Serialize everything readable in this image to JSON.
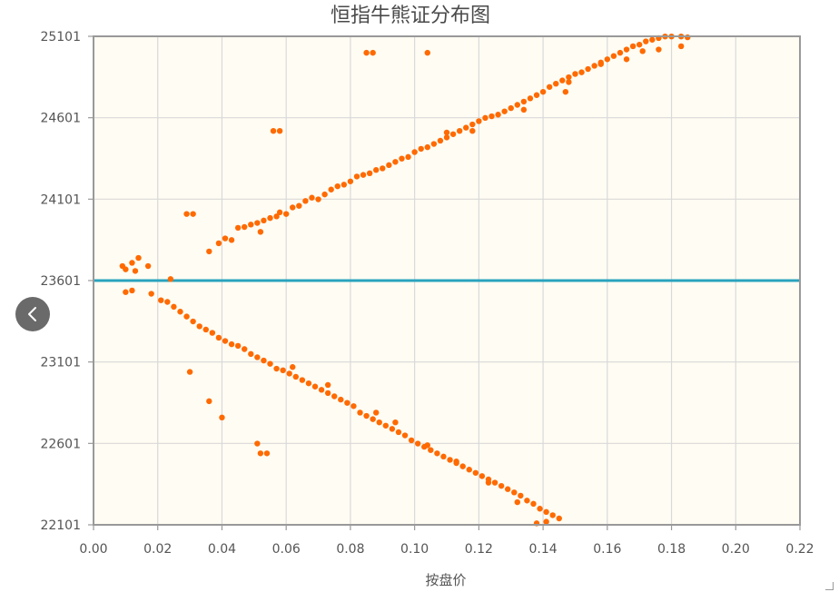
{
  "chart_data": {
    "type": "scatter",
    "title": "恒指牛熊证分布图",
    "xlabel": "按盘价",
    "ylabel": "",
    "xlim": [
      0,
      0.22
    ],
    "ylim": [
      22101,
      25101
    ],
    "x_ticks": [
      0,
      0.02,
      0.04,
      0.06,
      0.08,
      0.1,
      0.12,
      0.14,
      0.16,
      0.18,
      0.2,
      0.22
    ],
    "x_tick_labels": [
      "0.00",
      "0.02",
      "0.04",
      "0.06",
      "0.08",
      "0.10",
      "0.12",
      "0.14",
      "0.16",
      "0.18",
      "0.20",
      "0.22"
    ],
    "y_ticks": [
      22101,
      22601,
      23101,
      23601,
      24101,
      24601,
      25101
    ],
    "y_tick_labels": [
      "22101",
      "22601",
      "23101",
      "23601",
      "24101",
      "24601",
      "25101"
    ],
    "grid": true,
    "reference_line": {
      "y": 23601,
      "color": "#2aa3bd"
    },
    "colors": {
      "points": "#ff6a00",
      "plot_background": "#fffcf3",
      "grid": "#d9d9d9",
      "frame": "#999999"
    },
    "series": [
      {
        "points": [
          [
            0.009,
            23690
          ],
          [
            0.01,
            23670
          ],
          [
            0.012,
            23710
          ],
          [
            0.013,
            23660
          ],
          [
            0.014,
            23740
          ],
          [
            0.017,
            23690
          ],
          [
            0.036,
            23780
          ],
          [
            0.039,
            23830
          ],
          [
            0.041,
            23860
          ],
          [
            0.043,
            23850
          ],
          [
            0.045,
            23925
          ],
          [
            0.047,
            23930
          ],
          [
            0.049,
            23945
          ],
          [
            0.051,
            23955
          ],
          [
            0.052,
            23900
          ],
          [
            0.053,
            23970
          ],
          [
            0.055,
            23985
          ],
          [
            0.057,
            23995
          ],
          [
            0.058,
            24020
          ],
          [
            0.06,
            24010
          ],
          [
            0.062,
            24050
          ],
          [
            0.064,
            24060
          ],
          [
            0.066,
            24090
          ],
          [
            0.068,
            24110
          ],
          [
            0.07,
            24100
          ],
          [
            0.072,
            24130
          ],
          [
            0.074,
            24160
          ],
          [
            0.076,
            24180
          ],
          [
            0.078,
            24190
          ],
          [
            0.08,
            24210
          ],
          [
            0.082,
            24240
          ],
          [
            0.084,
            24250
          ],
          [
            0.086,
            24260
          ],
          [
            0.088,
            24280
          ],
          [
            0.09,
            24290
          ],
          [
            0.092,
            24310
          ],
          [
            0.094,
            24330
          ],
          [
            0.096,
            24350
          ],
          [
            0.098,
            24360
          ],
          [
            0.1,
            24390
          ],
          [
            0.102,
            24410
          ],
          [
            0.104,
            24420
          ],
          [
            0.106,
            24440
          ],
          [
            0.108,
            24460
          ],
          [
            0.11,
            24480
          ],
          [
            0.112,
            24500
          ],
          [
            0.114,
            24520
          ],
          [
            0.116,
            24540
          ],
          [
            0.118,
            24560
          ],
          [
            0.12,
            24580
          ],
          [
            0.122,
            24600
          ],
          [
            0.124,
            24610
          ],
          [
            0.126,
            24620
          ],
          [
            0.128,
            24640
          ],
          [
            0.13,
            24660
          ],
          [
            0.132,
            24680
          ],
          [
            0.134,
            24700
          ],
          [
            0.136,
            24720
          ],
          [
            0.138,
            24740
          ],
          [
            0.14,
            24760
          ],
          [
            0.142,
            24790
          ],
          [
            0.144,
            24810
          ],
          [
            0.146,
            24830
          ],
          [
            0.148,
            24850
          ],
          [
            0.15,
            24870
          ],
          [
            0.152,
            24880
          ],
          [
            0.154,
            24900
          ],
          [
            0.156,
            24920
          ],
          [
            0.158,
            24940
          ],
          [
            0.16,
            24960
          ],
          [
            0.162,
            24980
          ],
          [
            0.164,
            25000
          ],
          [
            0.166,
            25020
          ],
          [
            0.168,
            25040
          ],
          [
            0.17,
            25050
          ],
          [
            0.172,
            25070
          ],
          [
            0.174,
            25080
          ],
          [
            0.176,
            25090
          ],
          [
            0.178,
            25100
          ],
          [
            0.18,
            25100
          ],
          [
            0.183,
            25100
          ],
          [
            0.185,
            25095
          ],
          [
            0.11,
            24510
          ],
          [
            0.118,
            24520
          ],
          [
            0.134,
            24650
          ],
          [
            0.147,
            24760
          ],
          [
            0.158,
            24930
          ],
          [
            0.166,
            24960
          ],
          [
            0.148,
            24820
          ],
          [
            0.171,
            25010
          ],
          [
            0.176,
            25020
          ],
          [
            0.183,
            25040
          ],
          [
            0.056,
            24520
          ],
          [
            0.058,
            24520
          ],
          [
            0.029,
            24010
          ],
          [
            0.031,
            24010
          ],
          [
            0.085,
            25000
          ],
          [
            0.087,
            25000
          ],
          [
            0.104,
            25000
          ]
        ]
      },
      {
        "points": [
          [
            0.01,
            23530
          ],
          [
            0.012,
            23540
          ],
          [
            0.018,
            23520
          ],
          [
            0.021,
            23480
          ],
          [
            0.023,
            23470
          ],
          [
            0.024,
            23610
          ],
          [
            0.025,
            23440
          ],
          [
            0.027,
            23410
          ],
          [
            0.029,
            23380
          ],
          [
            0.031,
            23350
          ],
          [
            0.033,
            23320
          ],
          [
            0.035,
            23300
          ],
          [
            0.037,
            23280
          ],
          [
            0.039,
            23250
          ],
          [
            0.041,
            23230
          ],
          [
            0.043,
            23210
          ],
          [
            0.045,
            23200
          ],
          [
            0.047,
            23180
          ],
          [
            0.049,
            23150
          ],
          [
            0.051,
            23130
          ],
          [
            0.053,
            23110
          ],
          [
            0.055,
            23090
          ],
          [
            0.057,
            23060
          ],
          [
            0.059,
            23050
          ],
          [
            0.061,
            23030
          ],
          [
            0.063,
            23010
          ],
          [
            0.065,
            22990
          ],
          [
            0.067,
            22970
          ],
          [
            0.069,
            22950
          ],
          [
            0.071,
            22930
          ],
          [
            0.073,
            22910
          ],
          [
            0.075,
            22890
          ],
          [
            0.077,
            22870
          ],
          [
            0.079,
            22850
          ],
          [
            0.081,
            22830
          ],
          [
            0.083,
            22790
          ],
          [
            0.085,
            22770
          ],
          [
            0.087,
            22750
          ],
          [
            0.089,
            22730
          ],
          [
            0.091,
            22710
          ],
          [
            0.093,
            22690
          ],
          [
            0.095,
            22670
          ],
          [
            0.097,
            22650
          ],
          [
            0.099,
            22620
          ],
          [
            0.101,
            22600
          ],
          [
            0.103,
            22580
          ],
          [
            0.105,
            22560
          ],
          [
            0.107,
            22540
          ],
          [
            0.109,
            22520
          ],
          [
            0.111,
            22500
          ],
          [
            0.113,
            22480
          ],
          [
            0.115,
            22460
          ],
          [
            0.117,
            22440
          ],
          [
            0.119,
            22420
          ],
          [
            0.121,
            22400
          ],
          [
            0.123,
            22380
          ],
          [
            0.125,
            22360
          ],
          [
            0.127,
            22340
          ],
          [
            0.129,
            22320
          ],
          [
            0.131,
            22300
          ],
          [
            0.133,
            22280
          ],
          [
            0.135,
            22250
          ],
          [
            0.137,
            22230
          ],
          [
            0.139,
            22200
          ],
          [
            0.141,
            22180
          ],
          [
            0.143,
            22160
          ],
          [
            0.145,
            22140
          ],
          [
            0.062,
            23070
          ],
          [
            0.073,
            22960
          ],
          [
            0.088,
            22790
          ],
          [
            0.094,
            22730
          ],
          [
            0.104,
            22590
          ],
          [
            0.113,
            22490
          ],
          [
            0.123,
            22360
          ],
          [
            0.132,
            22240
          ],
          [
            0.138,
            22110
          ],
          [
            0.141,
            22120
          ],
          [
            0.03,
            23040
          ],
          [
            0.036,
            22860
          ],
          [
            0.04,
            22760
          ],
          [
            0.051,
            22600
          ],
          [
            0.052,
            22540
          ],
          [
            0.054,
            22540
          ]
        ]
      }
    ]
  }
}
